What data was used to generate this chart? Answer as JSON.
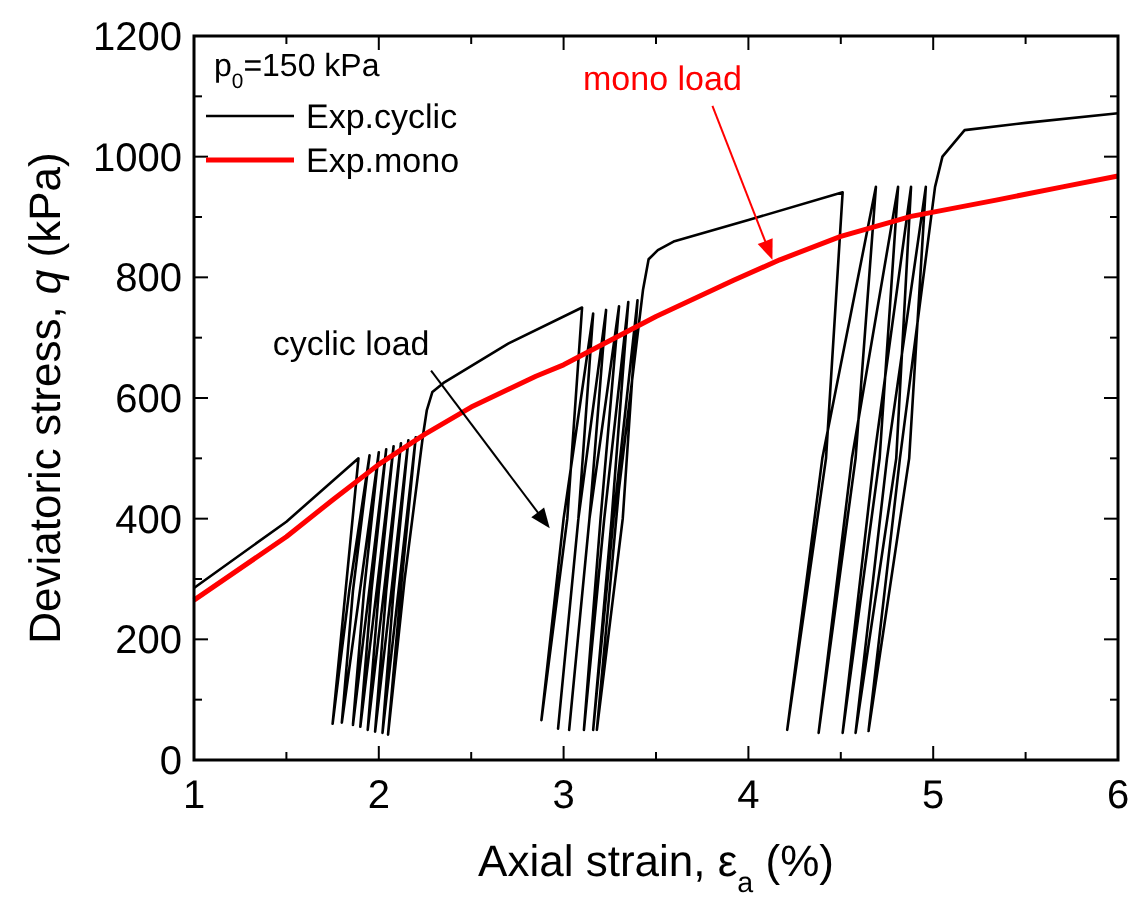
{
  "chart_data": {
    "type": "line",
    "xlabel": "Axial strain, ε$_{a}$ (%)",
    "ylabel": "Deviatoric stress, q (kPa)",
    "legend_title": "p$_{0}$=150 kPa",
    "legend": "top left",
    "xlim": [
      1,
      6
    ],
    "ylim": [
      0,
      1200
    ],
    "xticks": [
      1,
      {
        "value": 1.5,
        "label": null
      },
      2,
      {
        "value": 2.5,
        "label": null
      },
      3,
      {
        "value": 3.5,
        "label": null
      },
      4,
      {
        "value": 4.5,
        "label": null
      },
      5,
      {
        "value": 5.5,
        "label": null
      },
      6
    ],
    "yticks": [
      0,
      {
        "value": 100,
        "label": null
      },
      200,
      {
        "value": 300,
        "label": null
      },
      400,
      {
        "value": 500,
        "label": null
      },
      600,
      {
        "value": 700,
        "label": null
      },
      800,
      {
        "value": 900,
        "label": null
      },
      1000,
      {
        "value": 1100,
        "label": null
      },
      1200
    ],
    "grid": false,
    "marker": "none",
    "line_style": "solid",
    "series": [
      {
        "name": "Exp.cyclic",
        "color": "#000000",
        "x": [
          1,
          1.5,
          1.89,
          1.82,
          1.75,
          1.84,
          1.95,
          1.86,
          1.8,
          1.9,
          2.0,
          1.92,
          1.86,
          1.95,
          2.04,
          1.96,
          1.9,
          1.99,
          2.08,
          2.0,
          1.94,
          2.03,
          2.12,
          2.04,
          1.98,
          2.07,
          2.16,
          2.08,
          2.02,
          2.11,
          2.2,
          2.12,
          2.05,
          2.14,
          2.24,
          2.26,
          2.29,
          2.35,
          2.7,
          3.1,
          3.02,
          2.88,
          3.0,
          3.16,
          3.08,
          2.97,
          3.08,
          3.23,
          3.14,
          3.03,
          3.14,
          3.3,
          3.2,
          3.11,
          3.22,
          3.35,
          3.26,
          3.16,
          3.27,
          3.4,
          3.32,
          3.18,
          3.3,
          3.43,
          3.46,
          3.51,
          3.6,
          4.0,
          4.51,
          4.42,
          4.21,
          4.4,
          4.69,
          4.58,
          4.38,
          4.56,
          4.81,
          4.71,
          4.51,
          4.68,
          4.88,
          4.8,
          4.58,
          4.75,
          4.96,
          4.87,
          4.65,
          4.82,
          5.01,
          5.05,
          5.17,
          5.5,
          6
        ],
        "values": [
          285,
          395,
          500,
          280,
          60,
          280,
          505,
          280,
          62,
          285,
          510,
          280,
          58,
          285,
          515,
          280,
          55,
          285,
          520,
          280,
          50,
          285,
          525,
          280,
          47,
          285,
          530,
          280,
          45,
          290,
          535,
          285,
          42,
          300,
          540,
          580,
          610,
          625,
          690,
          750,
          400,
          66,
          400,
          740,
          400,
          52,
          400,
          746,
          400,
          50,
          400,
          752,
          400,
          50,
          400,
          759,
          400,
          50,
          400,
          762,
          400,
          50,
          450,
          780,
          830,
          845,
          860,
          895,
          941,
          500,
          50,
          500,
          950,
          500,
          45,
          500,
          950,
          500,
          45,
          500,
          950,
          500,
          45,
          500,
          950,
          500,
          48,
          500,
          950,
          1000,
          1044,
          1056,
          1072
        ]
      },
      {
        "name": "Exp.mono",
        "color": "#ff0000",
        "x": [
          1,
          1.5,
          1.75,
          2,
          2.25,
          2.5,
          2.85,
          3,
          3.5,
          3.92,
          4.17,
          4.5,
          4.88,
          5.34,
          5.7,
          6
        ],
        "values": [
          265,
          370,
          431,
          490,
          540,
          585,
          636,
          655,
          735,
          795,
          829,
          868,
          901,
          928,
          950,
          968
        ]
      }
    ],
    "annotations": [
      "cyclic load",
      {
        "text": "mono load",
        "x": 4.13,
        "y": 829
      }
    ]
  }
}
